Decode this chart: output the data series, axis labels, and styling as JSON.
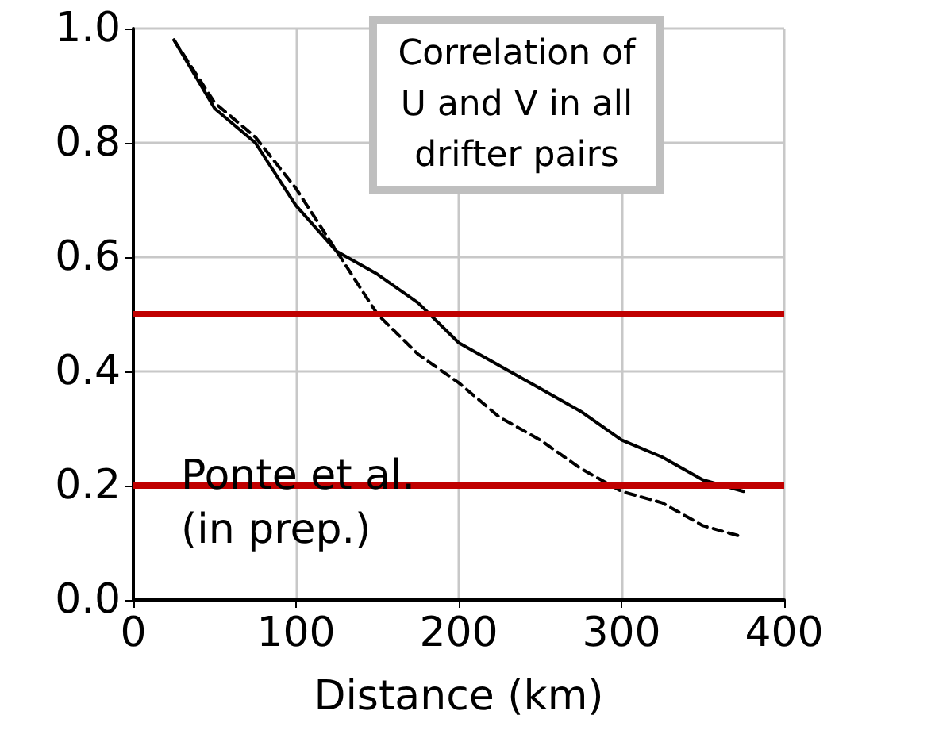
{
  "chart_data": {
    "type": "line",
    "title": "Correlation of\nU and V in all\ndrifter pairs",
    "xlabel": "Distance (km)",
    "x": [
      25,
      50,
      75,
      100,
      125,
      150,
      175,
      200,
      225,
      250,
      275,
      300,
      325,
      350,
      375
    ],
    "series": [
      {
        "color": "#000000",
        "line_style": "solid",
        "values": [
          0.98,
          0.86,
          0.8,
          0.69,
          0.61,
          0.57,
          0.52,
          0.45,
          0.41,
          0.37,
          0.33,
          0.28,
          0.25,
          0.21,
          0.19
        ]
      },
      {
        "color": "#000000",
        "line_style": "dashed",
        "values": [
          0.98,
          0.87,
          0.81,
          0.72,
          0.61,
          0.5,
          0.43,
          0.38,
          0.32,
          0.28,
          0.23,
          0.19,
          0.17,
          0.13,
          0.11
        ]
      }
    ],
    "xlim": [
      0,
      400
    ],
    "xticks": [
      0,
      100,
      200,
      300,
      400
    ],
    "ylim": [
      0,
      1
    ],
    "yticks": [
      {
        "value": 0,
        "label": "0.0"
      },
      {
        "value": 0.2,
        "label": "0.2"
      },
      {
        "value": 0.4,
        "label": "0.4"
      },
      {
        "value": 0.6,
        "label": "0.6"
      },
      {
        "value": 0.8,
        "label": "0.8"
      },
      {
        "value": 1,
        "label": "1.0"
      }
    ],
    "grid": true,
    "marker": "none",
    "ref_lines": [
      {
        "axis": "y",
        "value": 0.5,
        "color": "#c00000"
      },
      {
        "axis": "y",
        "value": 0.2,
        "color": "#c00000"
      }
    ],
    "annotations": [
      "Ponte et al.\n(in prep.)"
    ]
  }
}
